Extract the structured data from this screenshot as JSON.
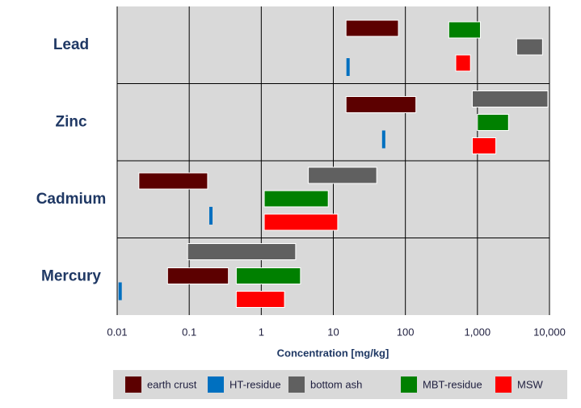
{
  "chart_data": {
    "type": "range-bar",
    "categories": [
      "Lead",
      "Zinc",
      "Cadmium",
      "Mercury"
    ],
    "xlabel": "Concentration [mg/kg]",
    "xscale": "log",
    "xlim": [
      0.01,
      10000
    ],
    "xticks": [
      0.01,
      0.1,
      1,
      10,
      100,
      {
        "value": 1000,
        "label": "1,000"
      },
      {
        "value": 10000,
        "label": "10,000"
      }
    ],
    "grid": true,
    "legend": "bottom",
    "series": [
      {
        "name": "earth crust",
        "color": "#5c0000",
        "values": [
          [
            15,
            80
          ],
          [
            15,
            140
          ],
          [
            0.02,
            0.18
          ],
          [
            0.05,
            0.35
          ]
        ]
      },
      {
        "name": "HT-residue",
        "color": "#0070c0",
        "values": [
          [
            16,
            16
          ],
          [
            50,
            50
          ],
          [
            0.2,
            0.2
          ],
          [
            0.011,
            0.011
          ]
        ]
      },
      {
        "name": "bottom ash",
        "color": "#606060",
        "values": [
          [
            3500,
            8000
          ],
          [
            850,
            9500
          ],
          [
            4.5,
            40
          ],
          [
            0.095,
            3
          ]
        ]
      },
      {
        "name": "MBT-residue",
        "color": "#008000",
        "values": [
          [
            400,
            1100
          ],
          [
            1000,
            2700
          ],
          [
            1.1,
            8.5
          ],
          [
            0.45,
            3.5
          ]
        ]
      },
      {
        "name": "MSW",
        "color": "#ff0000",
        "values": [
          [
            500,
            800
          ],
          [
            850,
            1800
          ],
          [
            1.1,
            11.5
          ],
          [
            0.45,
            2.1
          ]
        ]
      }
    ]
  }
}
